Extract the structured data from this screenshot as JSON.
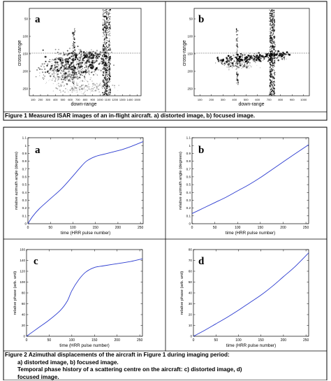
{
  "figure1": {
    "caption": "Figure 1  Measured ISAR images of an in-flight aircraft. a) distorted image, b) focused image.",
    "panels": [
      {
        "letter": "a",
        "xlabel": "down-range",
        "ylabel": "cross-range",
        "xticks": [
          "100",
          "200",
          "300",
          "400",
          "500",
          "600",
          "700",
          "800",
          "900",
          "1000",
          "1100",
          "1200",
          "1300",
          "1400",
          "1500"
        ],
        "yticks": [
          "50",
          "100",
          "150",
          "200",
          "250"
        ]
      },
      {
        "letter": "b",
        "xlabel": "down-range",
        "ylabel": "cross-range",
        "xticks": [
          "100",
          "200",
          "300",
          "400",
          "500",
          "600",
          "700",
          "800",
          "900",
          "1000"
        ],
        "yticks": [
          "50",
          "100",
          "150",
          "200",
          "250"
        ]
      }
    ]
  },
  "figure2": {
    "caption_lines": [
      "Figure 2  Azimuthal displacements of the aircraft in Figure 1 during imaging period:",
      "a) distorted image, b) focused image.",
      "Temporal phase history of a scattering centre on the aircraft: c) distorted image, d)",
      "focused image."
    ]
  },
  "colors": {
    "curve": "#2b3bd0",
    "frame": "#000000",
    "caption_bg": "#ffffff"
  },
  "chart_data": [
    {
      "type": "line",
      "letter": "a",
      "xlabel": "time  (HRR pulse number)",
      "ylabel": "relative azimuth angle (degrees)",
      "xlim": [
        0,
        256
      ],
      "ylim": [
        0,
        1.1
      ],
      "xticks": [
        "0",
        "50",
        "100",
        "150",
        "200",
        "250"
      ],
      "yticks": [
        "0",
        "0.1",
        "0.2",
        "0.3",
        "0.4",
        "0.5",
        "0.6",
        "0.7",
        "0.8",
        "0.9",
        "1",
        "1.1"
      ],
      "series": [
        {
          "x": [
            0,
            10,
            25,
            50,
            75,
            100,
            115,
            130,
            150,
            170,
            190,
            210,
            230,
            256
          ],
          "y": [
            0,
            0.09,
            0.19,
            0.32,
            0.45,
            0.61,
            0.71,
            0.8,
            0.86,
            0.89,
            0.92,
            0.95,
            0.99,
            1.05
          ]
        }
      ]
    },
    {
      "type": "line",
      "letter": "b",
      "xlabel": "time  (HRR pulse number)",
      "ylabel": "relative azimuth angle (degrees)",
      "xlim": [
        0,
        256
      ],
      "ylim": [
        0,
        1.1
      ],
      "xticks": [
        "0",
        "50",
        "100",
        "150",
        "200",
        "250"
      ],
      "yticks": [
        "0",
        "0.1",
        "0.2",
        "0.3",
        "0.4",
        "0.5",
        "0.6",
        "0.7",
        "0.8",
        "0.9",
        "1",
        "1.1"
      ],
      "series": [
        {
          "x": [
            0,
            25,
            50,
            75,
            100,
            125,
            150,
            175,
            200,
            225,
            256
          ],
          "y": [
            0.13,
            0.2,
            0.27,
            0.34,
            0.42,
            0.5,
            0.59,
            0.69,
            0.79,
            0.89,
            1.01
          ]
        }
      ]
    },
    {
      "type": "line",
      "letter": "c",
      "xlabel": "time  (HRR pulse number)",
      "ylabel": "relative phase  (arb. unit)",
      "xlim": [
        0,
        256
      ],
      "ylim": [
        0,
        160
      ],
      "xticks": [
        "0",
        "50",
        "100",
        "150",
        "200",
        "250"
      ],
      "yticks": [
        "0",
        "20",
        "40",
        "60",
        "80",
        "100",
        "120",
        "140",
        "160"
      ],
      "series": [
        {
          "x": [
            0,
            25,
            50,
            75,
            90,
            100,
            115,
            130,
            150,
            170,
            200,
            230,
            256
          ],
          "y": [
            0,
            15,
            30,
            48,
            65,
            84,
            104,
            118,
            127,
            130,
            134,
            138,
            143
          ]
        }
      ]
    },
    {
      "type": "line",
      "letter": "d",
      "xlabel": "time  (HRR pulse number)",
      "ylabel": "relative phase  (arb. unit)",
      "xlim": [
        0,
        256
      ],
      "ylim": [
        0,
        80
      ],
      "xticks": [
        "0",
        "50",
        "100",
        "150",
        "200",
        "250"
      ],
      "yticks": [
        "0",
        "10",
        "20",
        "30",
        "40",
        "50",
        "60",
        "70",
        "80"
      ],
      "series": [
        {
          "x": [
            0,
            25,
            50,
            75,
            100,
            125,
            150,
            175,
            200,
            225,
            256
          ],
          "y": [
            0,
            5.5,
            11.5,
            17.5,
            24,
            31,
            38,
            46,
            55,
            64,
            77
          ]
        }
      ]
    }
  ]
}
